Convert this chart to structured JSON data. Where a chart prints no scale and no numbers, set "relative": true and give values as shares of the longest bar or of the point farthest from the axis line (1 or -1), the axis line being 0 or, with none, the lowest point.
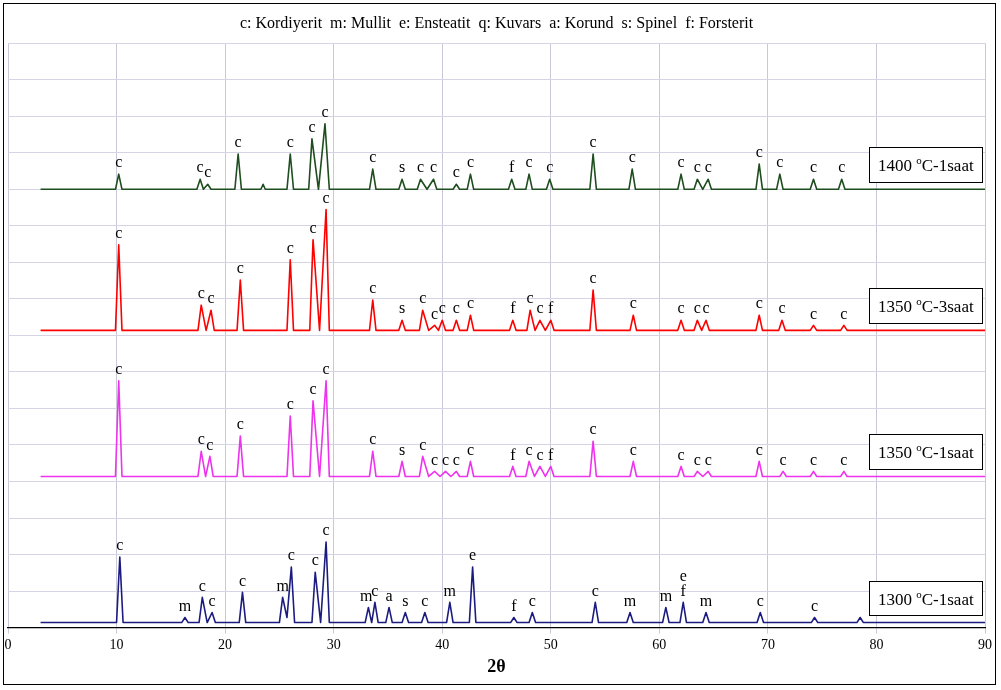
{
  "chart_data": {
    "type": "line",
    "relative": true,
    "title": "c: Kordiyerit  m: Mullit  e: Ensteatit  q: Kuvars  a: Korund  s: Spinel  f: Forsterit",
    "xlabel": "2θ",
    "xlim": [
      0,
      90
    ],
    "xticks": [
      0,
      10,
      20,
      30,
      40,
      50,
      60,
      70,
      80,
      90
    ],
    "grid": true,
    "legend": false,
    "marker": "none",
    "line_style": "solid",
    "series": [
      {
        "name": "1400 $^{o}$C-1saat",
        "color": "#1e4d1e",
        "x": [
          3,
          9.9,
          10.2,
          10.5,
          17.4,
          17.7,
          18.0,
          18.4,
          18.7,
          20.9,
          21.2,
          21.5,
          23.3,
          23.5,
          23.7,
          25.7,
          26.0,
          26.3,
          27.7,
          28.0,
          28.6,
          29.2,
          29.6,
          33.3,
          33.6,
          33.9,
          36.0,
          36.3,
          36.6,
          37.7,
          38.0,
          38.6,
          39.2,
          39.5,
          41.0,
          41.3,
          41.6,
          42.3,
          42.6,
          42.9,
          46.1,
          46.4,
          46.7,
          47.7,
          48.0,
          48.3,
          49.6,
          49.9,
          50.2,
          53.6,
          53.9,
          54.2,
          57.2,
          57.5,
          57.8,
          61.7,
          62.0,
          62.3,
          63.2,
          63.5,
          64.0,
          64.5,
          64.8,
          68.9,
          69.2,
          69.5,
          70.8,
          71.1,
          71.4,
          73.9,
          74.2,
          74.5,
          76.5,
          76.8,
          77.1,
          90
        ],
        "values": [
          0.87,
          0.87,
          0.9,
          0.87,
          0.87,
          0.89,
          0.87,
          0.88,
          0.87,
          0.87,
          0.94,
          0.87,
          0.87,
          0.88,
          0.87,
          0.87,
          0.94,
          0.87,
          0.87,
          0.97,
          0.87,
          1,
          0.87,
          0.87,
          0.91,
          0.87,
          0.87,
          0.89,
          0.87,
          0.87,
          0.89,
          0.87,
          0.89,
          0.87,
          0.87,
          0.88,
          0.87,
          0.87,
          0.9,
          0.87,
          0.87,
          0.89,
          0.87,
          0.87,
          0.9,
          0.87,
          0.87,
          0.89,
          0.87,
          0.87,
          0.94,
          0.87,
          0.87,
          0.91,
          0.87,
          0.87,
          0.9,
          0.87,
          0.87,
          0.89,
          0.87,
          0.89,
          0.87,
          0.87,
          0.92,
          0.87,
          0.87,
          0.9,
          0.87,
          0.87,
          0.89,
          0.87,
          0.87,
          0.89,
          0.87,
          0.87
        ]
      },
      {
        "name": "1350 $^{o}$C-3saat",
        "color": "#ff0000",
        "x": [
          3,
          9.9,
          10.2,
          10.5,
          17.5,
          17.8,
          18.25,
          18.7,
          19.0,
          21.1,
          21.4,
          21.7,
          25.7,
          26.0,
          26.3,
          27.8,
          28.1,
          28.7,
          29.3,
          29.6,
          33.3,
          33.6,
          33.9,
          36.0,
          36.3,
          36.6,
          37.9,
          38.2,
          38.75,
          39.3,
          39.65,
          40.0,
          40.3,
          41.0,
          41.3,
          41.6,
          42.3,
          42.6,
          42.9,
          46.2,
          46.5,
          46.8,
          47.8,
          48.1,
          48.55,
          49.0,
          49.5,
          50.0,
          50.3,
          53.6,
          53.9,
          54.2,
          57.3,
          57.6,
          57.9,
          61.7,
          62.0,
          62.3,
          63.2,
          63.5,
          63.9,
          64.3,
          64.6,
          68.9,
          69.2,
          69.5,
          71.0,
          71.3,
          71.6,
          73.9,
          74.2,
          74.5,
          76.7,
          77.0,
          77.3,
          90
        ],
        "values": [
          0.59,
          0.59,
          0.76,
          0.59,
          0.59,
          0.64,
          0.59,
          0.63,
          0.59,
          0.59,
          0.69,
          0.59,
          0.59,
          0.73,
          0.59,
          0.59,
          0.77,
          0.59,
          0.83,
          0.59,
          0.59,
          0.65,
          0.59,
          0.59,
          0.61,
          0.59,
          0.59,
          0.63,
          0.59,
          0.6,
          0.59,
          0.61,
          0.59,
          0.59,
          0.61,
          0.59,
          0.59,
          0.62,
          0.59,
          0.59,
          0.61,
          0.59,
          0.59,
          0.63,
          0.59,
          0.61,
          0.59,
          0.61,
          0.59,
          0.59,
          0.67,
          0.59,
          0.59,
          0.62,
          0.59,
          0.59,
          0.61,
          0.59,
          0.59,
          0.61,
          0.59,
          0.61,
          0.59,
          0.59,
          0.62,
          0.59,
          0.59,
          0.61,
          0.59,
          0.59,
          0.6,
          0.59,
          0.59,
          0.6,
          0.59,
          0.59
        ]
      },
      {
        "name": "1350 $^{o}$C-1saat",
        "color": "#ee33ee",
        "x": [
          3,
          9.9,
          10.2,
          10.5,
          17.5,
          17.8,
          18.2,
          18.6,
          18.9,
          21.1,
          21.4,
          21.7,
          25.7,
          26.0,
          26.3,
          27.8,
          28.1,
          28.7,
          29.3,
          29.6,
          33.3,
          33.6,
          33.9,
          36.0,
          36.3,
          36.6,
          37.9,
          38.2,
          38.75,
          39.3,
          39.8,
          40.3,
          40.8,
          41.3,
          41.6,
          42.3,
          42.6,
          42.9,
          46.2,
          46.5,
          46.8,
          47.7,
          48.0,
          48.5,
          49.0,
          49.5,
          50.0,
          50.3,
          53.6,
          53.9,
          54.2,
          57.3,
          57.6,
          57.9,
          61.7,
          62.0,
          62.3,
          63.2,
          63.5,
          64.0,
          64.5,
          64.8,
          68.9,
          69.2,
          69.5,
          71.1,
          71.4,
          71.7,
          73.9,
          74.2,
          74.5,
          76.7,
          77.0,
          77.3,
          90
        ],
        "values": [
          0.3,
          0.3,
          0.49,
          0.3,
          0.3,
          0.35,
          0.3,
          0.34,
          0.3,
          0.3,
          0.38,
          0.3,
          0.3,
          0.42,
          0.3,
          0.3,
          0.45,
          0.3,
          0.49,
          0.3,
          0.3,
          0.35,
          0.3,
          0.3,
          0.33,
          0.3,
          0.3,
          0.34,
          0.3,
          0.31,
          0.3,
          0.31,
          0.3,
          0.31,
          0.3,
          0.3,
          0.33,
          0.3,
          0.3,
          0.32,
          0.3,
          0.3,
          0.33,
          0.3,
          0.32,
          0.3,
          0.32,
          0.3,
          0.3,
          0.37,
          0.3,
          0.3,
          0.33,
          0.3,
          0.3,
          0.32,
          0.3,
          0.3,
          0.31,
          0.3,
          0.31,
          0.3,
          0.3,
          0.33,
          0.3,
          0.3,
          0.31,
          0.3,
          0.3,
          0.31,
          0.3,
          0.3,
          0.31,
          0.3,
          0.3
        ]
      },
      {
        "name": "1300 $^{o}$C-1saat",
        "color": "#1c1c80",
        "x": [
          3,
          10.0,
          10.3,
          10.6,
          16.0,
          16.3,
          16.6,
          17.6,
          17.9,
          18.35,
          18.8,
          19.1,
          21.3,
          21.6,
          21.9,
          25.0,
          25.3,
          25.7,
          26.1,
          26.4,
          28.0,
          28.3,
          28.8,
          29.3,
          29.6,
          32.9,
          33.2,
          33.5,
          33.8,
          34.1,
          34.8,
          35.1,
          35.4,
          36.3,
          36.6,
          36.9,
          38.1,
          38.4,
          38.7,
          40.4,
          40.7,
          41.0,
          42.5,
          42.8,
          43.1,
          46.3,
          46.6,
          46.9,
          48.0,
          48.3,
          48.6,
          53.8,
          54.1,
          54.4,
          57.0,
          57.3,
          57.6,
          60.3,
          60.6,
          60.9,
          61.9,
          62.2,
          62.5,
          64.0,
          64.3,
          64.6,
          69.0,
          69.3,
          69.6,
          74.0,
          74.3,
          74.6,
          78.2,
          78.5,
          78.8,
          90
        ],
        "values": [
          0.01,
          0.01,
          0.14,
          0.01,
          0.01,
          0.02,
          0.01,
          0.01,
          0.06,
          0.01,
          0.03,
          0.01,
          0.01,
          0.07,
          0.01,
          0.01,
          0.06,
          0.02,
          0.12,
          0.01,
          0.01,
          0.11,
          0.01,
          0.17,
          0.01,
          0.01,
          0.04,
          0.01,
          0.05,
          0.01,
          0.01,
          0.04,
          0.01,
          0.01,
          0.03,
          0.01,
          0.01,
          0.03,
          0.01,
          0.01,
          0.05,
          0.01,
          0.01,
          0.12,
          0.01,
          0.01,
          0.02,
          0.01,
          0.01,
          0.03,
          0.01,
          0.01,
          0.05,
          0.01,
          0.01,
          0.03,
          0.01,
          0.01,
          0.04,
          0.01,
          0.01,
          0.05,
          0.01,
          0.01,
          0.03,
          0.01,
          0.01,
          0.03,
          0.01,
          0.01,
          0.02,
          0.01,
          0.01,
          0.02,
          0.01,
          0.01
        ]
      }
    ],
    "annotations": [
      {
        "text": "c",
        "x": 10.2,
        "y": 0.9
      },
      {
        "text": "c",
        "x": 17.7,
        "y": 0.89
      },
      {
        "text": "c",
        "x": 18.4,
        "y": 0.88
      },
      {
        "text": "c",
        "x": 21.2,
        "y": 0.94
      },
      {
        "text": "c",
        "x": 26.0,
        "y": 0.94
      },
      {
        "text": "c",
        "x": 28.0,
        "y": 0.97
      },
      {
        "text": "c",
        "x": 29.2,
        "y": 1
      },
      {
        "text": "c",
        "x": 33.6,
        "y": 0.91
      },
      {
        "text": "s",
        "x": 36.3,
        "y": 0.89
      },
      {
        "text": "c",
        "x": 38.0,
        "y": 0.89
      },
      {
        "text": "c",
        "x": 39.2,
        "y": 0.89
      },
      {
        "text": "c",
        "x": 41.3,
        "y": 0.88
      },
      {
        "text": "c",
        "x": 42.6,
        "y": 0.9
      },
      {
        "text": "f",
        "x": 46.4,
        "y": 0.89
      },
      {
        "text": "c",
        "x": 48.0,
        "y": 0.9
      },
      {
        "text": "c",
        "x": 49.9,
        "y": 0.89
      },
      {
        "text": "c",
        "x": 53.9,
        "y": 0.94
      },
      {
        "text": "c",
        "x": 57.5,
        "y": 0.91
      },
      {
        "text": "c",
        "x": 62.0,
        "y": 0.9
      },
      {
        "text": "c",
        "x": 63.5,
        "y": 0.89
      },
      {
        "text": "c",
        "x": 64.5,
        "y": 0.89
      },
      {
        "text": "c",
        "x": 69.2,
        "y": 0.92
      },
      {
        "text": "c",
        "x": 71.1,
        "y": 0.9
      },
      {
        "text": "c",
        "x": 74.2,
        "y": 0.89
      },
      {
        "text": "c",
        "x": 76.8,
        "y": 0.89
      },
      {
        "text": "c",
        "x": 10.2,
        "y": 0.76
      },
      {
        "text": "c",
        "x": 17.8,
        "y": 0.64
      },
      {
        "text": "c",
        "x": 18.7,
        "y": 0.63
      },
      {
        "text": "c",
        "x": 21.4,
        "y": 0.69
      },
      {
        "text": "c",
        "x": 26.0,
        "y": 0.73
      },
      {
        "text": "c",
        "x": 28.1,
        "y": 0.77
      },
      {
        "text": "c",
        "x": 29.3,
        "y": 0.83
      },
      {
        "text": "c",
        "x": 33.6,
        "y": 0.65
      },
      {
        "text": "s",
        "x": 36.3,
        "y": 0.61
      },
      {
        "text": "c",
        "x": 38.2,
        "y": 0.63
      },
      {
        "text": "c",
        "x": 39.3,
        "y": 0.6
      },
      {
        "text": "c",
        "x": 40.0,
        "y": 0.61
      },
      {
        "text": "c",
        "x": 41.3,
        "y": 0.61
      },
      {
        "text": "c",
        "x": 42.6,
        "y": 0.62
      },
      {
        "text": "f",
        "x": 46.5,
        "y": 0.61
      },
      {
        "text": "c",
        "x": 48.1,
        "y": 0.63
      },
      {
        "text": "c",
        "x": 49.0,
        "y": 0.61
      },
      {
        "text": "f",
        "x": 50.0,
        "y": 0.61
      },
      {
        "text": "c",
        "x": 53.9,
        "y": 0.67
      },
      {
        "text": "c",
        "x": 57.6,
        "y": 0.62
      },
      {
        "text": "c",
        "x": 62.0,
        "y": 0.61
      },
      {
        "text": "c",
        "x": 63.5,
        "y": 0.61
      },
      {
        "text": "c",
        "x": 64.3,
        "y": 0.61
      },
      {
        "text": "c",
        "x": 69.2,
        "y": 0.62
      },
      {
        "text": "c",
        "x": 71.3,
        "y": 0.61
      },
      {
        "text": "c",
        "x": 74.2,
        "y": 0.6
      },
      {
        "text": "c",
        "x": 77.0,
        "y": 0.6
      },
      {
        "text": "c",
        "x": 10.2,
        "y": 0.49
      },
      {
        "text": "c",
        "x": 17.8,
        "y": 0.35
      },
      {
        "text": "c",
        "x": 18.6,
        "y": 0.34
      },
      {
        "text": "c",
        "x": 21.4,
        "y": 0.38
      },
      {
        "text": "c",
        "x": 26.0,
        "y": 0.42
      },
      {
        "text": "c",
        "x": 28.1,
        "y": 0.45
      },
      {
        "text": "c",
        "x": 29.3,
        "y": 0.49
      },
      {
        "text": "c",
        "x": 33.6,
        "y": 0.35
      },
      {
        "text": "s",
        "x": 36.3,
        "y": 0.33
      },
      {
        "text": "c",
        "x": 38.2,
        "y": 0.34
      },
      {
        "text": "c",
        "x": 39.3,
        "y": 0.31
      },
      {
        "text": "c",
        "x": 40.3,
        "y": 0.31
      },
      {
        "text": "c",
        "x": 41.3,
        "y": 0.31
      },
      {
        "text": "c",
        "x": 42.6,
        "y": 0.33
      },
      {
        "text": "f",
        "x": 46.5,
        "y": 0.32
      },
      {
        "text": "c",
        "x": 48.0,
        "y": 0.33
      },
      {
        "text": "c",
        "x": 49.0,
        "y": 0.32
      },
      {
        "text": "f",
        "x": 50.0,
        "y": 0.32
      },
      {
        "text": "c",
        "x": 53.9,
        "y": 0.37
      },
      {
        "text": "c",
        "x": 57.6,
        "y": 0.33
      },
      {
        "text": "c",
        "x": 62.0,
        "y": 0.32
      },
      {
        "text": "c",
        "x": 63.5,
        "y": 0.31
      },
      {
        "text": "c",
        "x": 64.5,
        "y": 0.31
      },
      {
        "text": "c",
        "x": 69.2,
        "y": 0.33
      },
      {
        "text": "c",
        "x": 71.4,
        "y": 0.31
      },
      {
        "text": "c",
        "x": 74.2,
        "y": 0.31
      },
      {
        "text": "c",
        "x": 77.0,
        "y": 0.31
      },
      {
        "text": "c",
        "x": 10.3,
        "y": 0.14
      },
      {
        "text": "m",
        "x": 16.3,
        "y": 0.02
      },
      {
        "text": "c",
        "x": 17.9,
        "y": 0.06
      },
      {
        "text": "c",
        "x": 18.8,
        "y": 0.03
      },
      {
        "text": "c",
        "x": 21.6,
        "y": 0.07
      },
      {
        "text": "m",
        "x": 25.3,
        "y": 0.06
      },
      {
        "text": "c",
        "x": 26.1,
        "y": 0.12
      },
      {
        "text": "c",
        "x": 28.3,
        "y": 0.11
      },
      {
        "text": "c",
        "x": 29.3,
        "y": 0.17
      },
      {
        "text": "m",
        "x": 33.0,
        "y": 0.04
      },
      {
        "text": "c",
        "x": 33.8,
        "y": 0.05
      },
      {
        "text": "a",
        "x": 35.1,
        "y": 0.04
      },
      {
        "text": "s",
        "x": 36.6,
        "y": 0.03
      },
      {
        "text": "c",
        "x": 38.4,
        "y": 0.03
      },
      {
        "text": "m",
        "x": 40.7,
        "y": 0.05
      },
      {
        "text": "e",
        "x": 42.8,
        "y": 0.12
      },
      {
        "text": "f",
        "x": 46.6,
        "y": 0.02
      },
      {
        "text": "c",
        "x": 48.3,
        "y": 0.03
      },
      {
        "text": "c",
        "x": 54.1,
        "y": 0.05
      },
      {
        "text": "m",
        "x": 57.3,
        "y": 0.03
      },
      {
        "text": "m",
        "x": 60.6,
        "y": 0.04
      },
      {
        "text": "f",
        "x": 62.2,
        "y": 0.05
      },
      {
        "text": "e",
        "x": 62.2,
        "y": 0.05
      },
      {
        "text": "m",
        "x": 64.3,
        "y": 0.03
      },
      {
        "text": "c",
        "x": 69.3,
        "y": 0.03
      },
      {
        "text": "c",
        "x": 74.3,
        "y": 0.02
      }
    ]
  }
}
